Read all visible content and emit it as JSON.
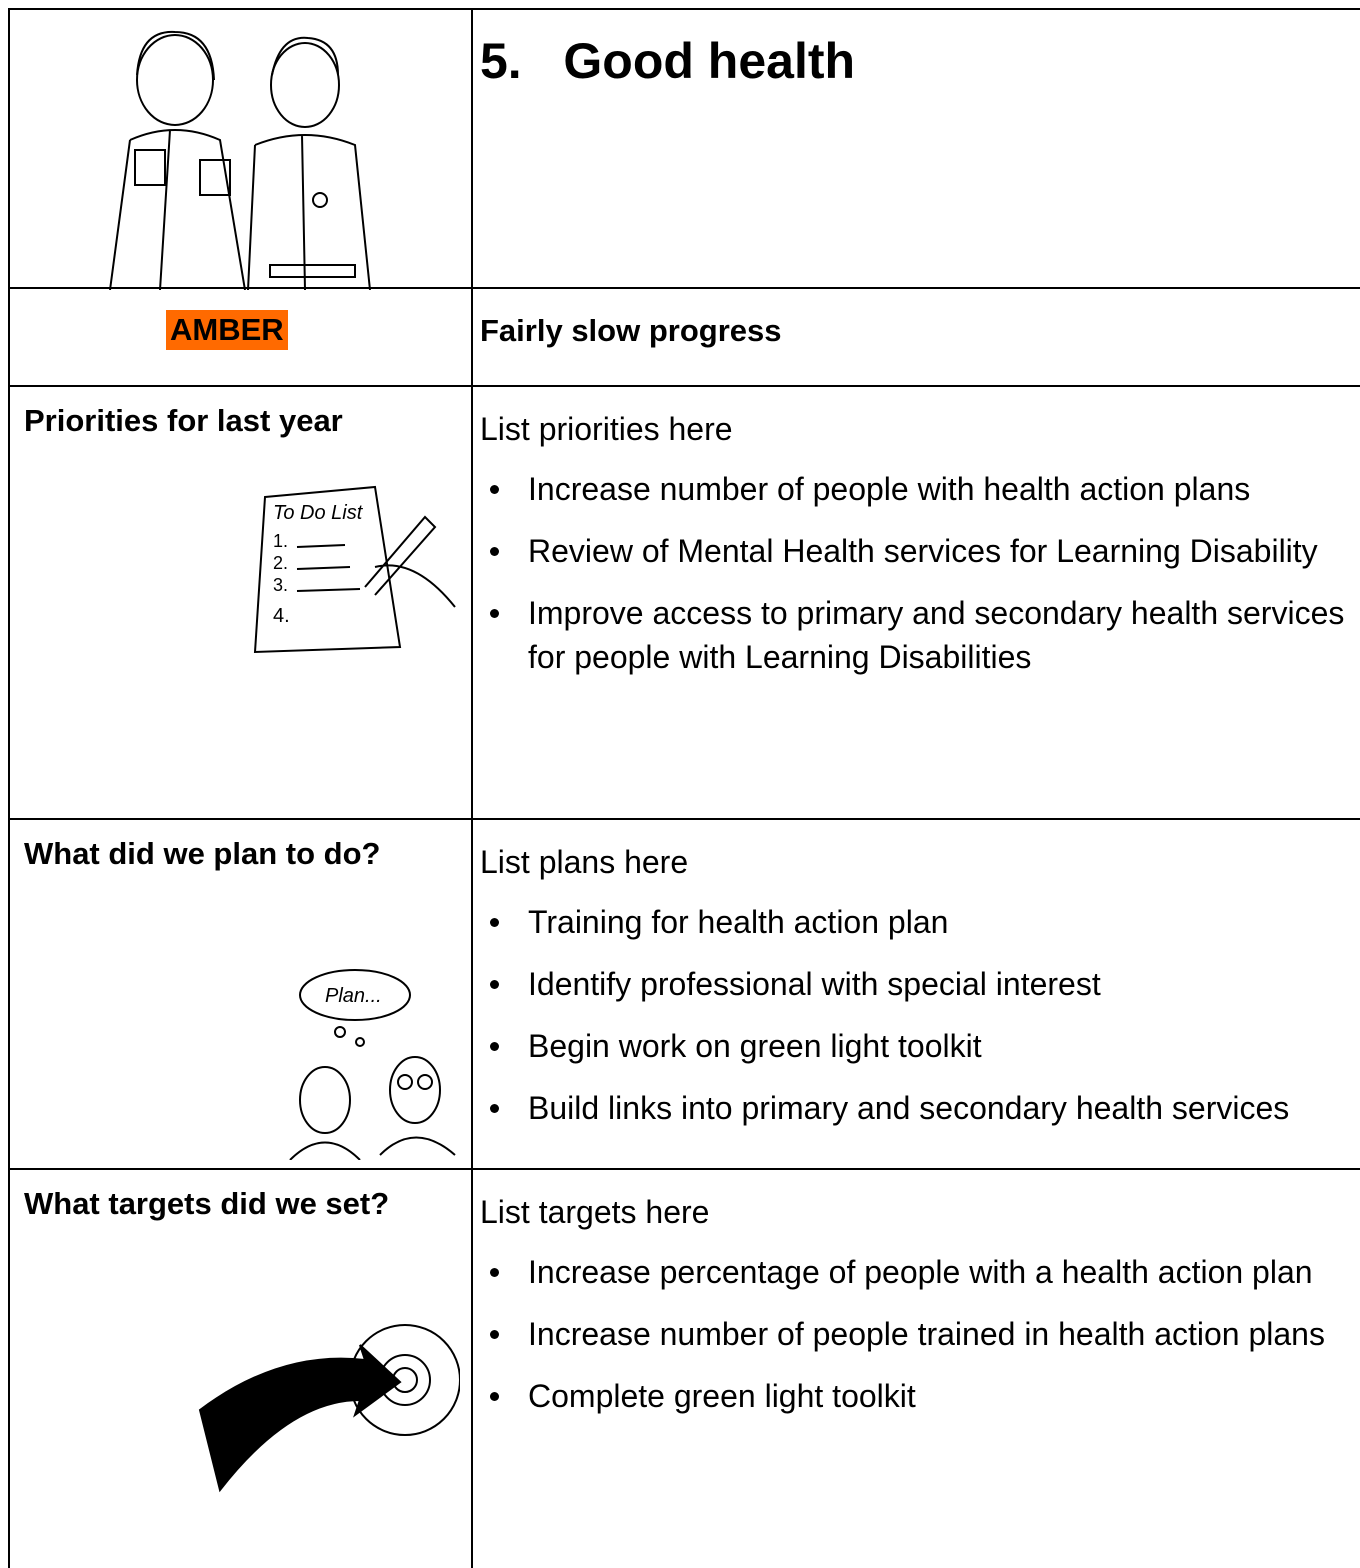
{
  "header": {
    "number": "5.",
    "title": "Good health"
  },
  "status": {
    "rating": "AMBER",
    "description": "Fairly slow progress"
  },
  "sections": [
    {
      "label": "Priorities for last year",
      "intro": "List priorities here",
      "items": [
        "Increase number of people with health action plans",
        "Review of Mental Health services for Learning Disability",
        "Improve access to primary and secondary health services for people with Learning Disabilities"
      ]
    },
    {
      "label": "What did we plan to do?",
      "intro": "List plans here",
      "items": [
        "Training for health action plan",
        "Identify professional with special interest",
        "Begin work on green light toolkit",
        "Build links into primary and secondary health services"
      ]
    },
    {
      "label": "What targets did we set?",
      "intro": "List targets here",
      "items": [
        "Increase percentage of people with a health action plan",
        "Increase number of people trained in health action plans",
        "Complete green light toolkit"
      ]
    }
  ]
}
